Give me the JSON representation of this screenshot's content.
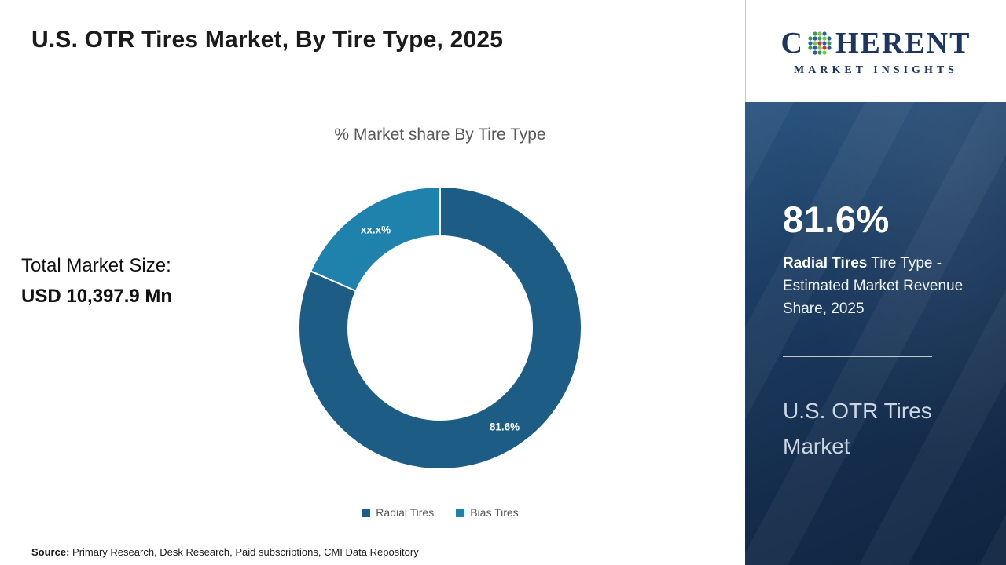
{
  "page": {
    "title": "U.S. OTR Tires Market, By Tire Type, 2025",
    "source_label": "Source:",
    "source_text": " Primary Research, Desk Research, Paid subscriptions, CMI Data Repository"
  },
  "left": {
    "total_label": "Total Market Size:",
    "total_value": "USD 10,397.9 Mn"
  },
  "chart_data": {
    "type": "pie",
    "donut": true,
    "title": "% Market share By Tire Type",
    "categories": [
      "Radial Tires",
      "Bias Tires"
    ],
    "values": [
      81.6,
      18.4
    ],
    "slice_labels": [
      "81.6%",
      "xx.x%"
    ],
    "colors": [
      "#1d5c85",
      "#1f82ad"
    ],
    "start_angle_deg": 0,
    "legend_position": "bottom"
  },
  "side_panel": {
    "stat_value": "81.6%",
    "stat_bold": "Radial Tires",
    "stat_rest": " Tire Type - Estimated Market Revenue Share, 2025",
    "panel_title": "U.S. OTR Tires Market",
    "bg_color": "#16365c"
  },
  "logo": {
    "letter_c": "C",
    "rest": "HERENT",
    "line2": "MARKET INSIGHTS"
  }
}
